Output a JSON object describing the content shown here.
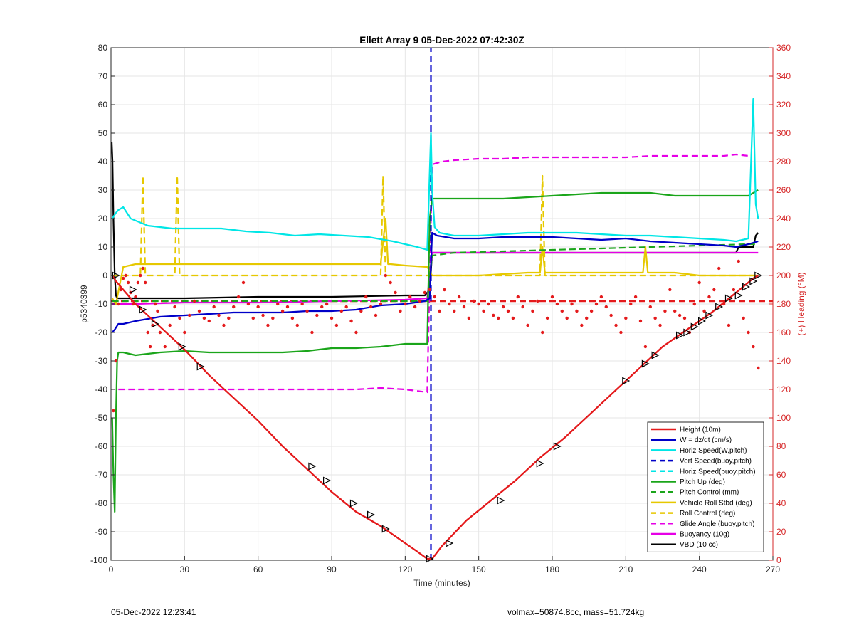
{
  "chart_data": {
    "type": "line",
    "title": "Ellett Array 9 05-Dec-2022 07:42:30Z",
    "xlabel": "Time (minutes)",
    "ylabel": "p5340399",
    "ylabel_right": "(+) Heading (°M)",
    "xlim": [
      0,
      270
    ],
    "ylim": [
      -100,
      80
    ],
    "ylim_right": [
      0,
      360
    ],
    "xticks": [
      0,
      30,
      60,
      90,
      120,
      150,
      180,
      210,
      240,
      270
    ],
    "yticks": [
      -100,
      -90,
      -80,
      -70,
      -60,
      -50,
      -40,
      -30,
      -20,
      -10,
      0,
      10,
      20,
      30,
      40,
      50,
      60,
      70,
      80
    ],
    "yticks_right": [
      0,
      20,
      40,
      60,
      80,
      100,
      120,
      140,
      160,
      180,
      200,
      220,
      240,
      260,
      280,
      300,
      320,
      340,
      360
    ],
    "grid": true,
    "legend_position": "bottom-right",
    "series": [
      {
        "name": "Height (10m)",
        "color": "#e41a1c",
        "style": "solid",
        "x": [
          0.5,
          2,
          10,
          20,
          30,
          40,
          50,
          60,
          70,
          80,
          90,
          100,
          110,
          120,
          125,
          129,
          131,
          135,
          145,
          155,
          165,
          175,
          185,
          195,
          205,
          215,
          225,
          235,
          245,
          255,
          262,
          264
        ],
        "y": [
          0,
          -2,
          -10,
          -18,
          -26,
          -35,
          -43,
          -51,
          -60,
          -68,
          -76,
          -83,
          -88,
          -94,
          -97,
          -99.5,
          -99.5,
          -95,
          -86,
          -79,
          -72,
          -64,
          -57,
          -49,
          -41,
          -33,
          -25,
          -19,
          -13,
          -6,
          -1,
          0
        ]
      },
      {
        "name": "W = dz/dt (cm/s)",
        "color": "#0000c8",
        "style": "solid",
        "x": [
          0.5,
          1.5,
          3,
          5,
          10,
          20,
          30,
          40,
          50,
          60,
          70,
          80,
          90,
          100,
          110,
          120,
          128,
          130,
          131,
          133,
          140,
          150,
          160,
          170,
          180,
          190,
          200,
          210,
          220,
          230,
          240,
          250,
          255,
          260,
          264
        ],
        "y": [
          -20,
          -19,
          -17,
          -17,
          -16,
          -14.5,
          -14,
          -13.5,
          -13,
          -13,
          -13,
          -12.5,
          -12.5,
          -12,
          -10.5,
          -10,
          -9,
          -8,
          15,
          14,
          13,
          13,
          13.5,
          13.5,
          13.5,
          13,
          12.5,
          13,
          12,
          11.5,
          11,
          10.5,
          10,
          11,
          12
        ]
      },
      {
        "name": "Horiz Speed(W,pitch)",
        "color": "#00e6e6",
        "style": "solid",
        "x": [
          0.5,
          2,
          3,
          5,
          8,
          15,
          25,
          35,
          45,
          55,
          65,
          75,
          85,
          95,
          105,
          115,
          125,
          129,
          130.5,
          131,
          132,
          134,
          140,
          150,
          160,
          170,
          180,
          190,
          200,
          210,
          220,
          230,
          240,
          250,
          255,
          260,
          262,
          263,
          264
        ],
        "y": [
          20,
          22,
          23,
          24,
          20,
          17.5,
          16.5,
          16.5,
          16.5,
          15.5,
          15,
          14,
          14.5,
          14,
          13.5,
          12,
          10,
          9,
          50,
          30,
          17,
          15,
          14,
          14,
          14.5,
          15,
          15,
          15,
          14.5,
          14,
          14,
          13.5,
          13,
          12.5,
          12,
          13,
          62,
          25,
          20
        ]
      },
      {
        "name": "Vert Speed(buoy,pitch)",
        "color": "#0000c8",
        "style": "dashed",
        "x": [
          130.5,
          130.5
        ],
        "y": [
          -100,
          80
        ]
      },
      {
        "name": "Horiz Speed(buoy,pitch)",
        "color": "#00e6e6",
        "style": "dashed",
        "x": [],
        "y": []
      },
      {
        "name": "Pitch Up (deg)",
        "color": "#1aa51a",
        "style": "solid",
        "x": [
          0.5,
          1,
          1.5,
          2,
          2.5,
          3,
          5,
          10,
          20,
          30,
          40,
          50,
          60,
          70,
          80,
          90,
          100,
          110,
          120,
          129,
          130,
          131,
          133,
          140,
          150,
          160,
          170,
          180,
          190,
          200,
          210,
          220,
          230,
          240,
          250,
          260,
          264
        ],
        "y": [
          -50,
          -70,
          -83,
          -50,
          -30,
          -27,
          -27,
          -28,
          -27,
          -26.5,
          -27,
          -27,
          -27,
          -27,
          -26.5,
          -25.5,
          -25.5,
          -25,
          -24,
          -24,
          20,
          27,
          27,
          27,
          27,
          27,
          27.5,
          28,
          28.5,
          29,
          29,
          29,
          28,
          28,
          28,
          28,
          30
        ]
      },
      {
        "name": "Pitch Control (mm)",
        "color": "#1aa51a",
        "style": "dashed",
        "x": [
          0.5,
          2,
          5,
          30,
          60,
          90,
          120,
          129,
          131,
          140,
          160,
          180,
          200,
          220,
          240,
          260,
          264
        ],
        "y": [
          -9,
          -9,
          -9,
          -9,
          -9,
          -9,
          -9,
          -9,
          7,
          8,
          8.5,
          9,
          9.5,
          10,
          10.5,
          11,
          11
        ]
      },
      {
        "name": "Vehicle Roll Stbd (deg)",
        "color": "#e6c800",
        "style": "solid",
        "x": [
          0.5,
          2,
          5,
          10,
          20,
          30,
          40,
          50,
          60,
          70,
          80,
          90,
          100,
          110,
          112,
          113,
          114,
          120,
          129,
          131,
          135,
          150,
          170,
          175,
          176,
          177,
          180,
          200,
          217,
          218,
          219,
          230,
          240,
          250,
          260,
          264
        ],
        "y": [
          -8,
          -10,
          3,
          4,
          4,
          4,
          4,
          4,
          4,
          4,
          4,
          4,
          4,
          4,
          20,
          4,
          4,
          3.5,
          3,
          0,
          0,
          0,
          1,
          1,
          10,
          1,
          1,
          1,
          1,
          10,
          1,
          1,
          0,
          0,
          0,
          0
        ]
      },
      {
        "name": "Roll Control (deg)",
        "color": "#e6c800",
        "style": "dashed",
        "x": [
          0.5,
          5,
          12,
          13,
          14,
          20,
          26,
          27,
          28,
          35,
          60,
          90,
          110,
          111,
          112,
          129,
          131,
          150,
          160,
          170,
          175,
          176,
          177,
          200,
          220,
          240,
          260,
          264
        ],
        "y": [
          0,
          0,
          0,
          35,
          0,
          0,
          0,
          35,
          0,
          0,
          0,
          0,
          0,
          35,
          0,
          0,
          0,
          0,
          0,
          0,
          0,
          35,
          0,
          0,
          0,
          0,
          0,
          0
        ]
      },
      {
        "name": "Glide Angle (buoy,pitch)",
        "color": "#e600e6",
        "style": "dashed",
        "x": [
          3,
          10,
          20,
          30,
          40,
          50,
          60,
          70,
          80,
          90,
          100,
          110,
          120,
          129,
          131,
          135,
          140,
          150,
          160,
          170,
          180,
          190,
          200,
          210,
          220,
          230,
          240,
          250,
          255,
          260
        ],
        "y": [
          -40,
          -40,
          -40,
          -40,
          -40,
          -40,
          -40,
          -40,
          -40,
          -40,
          -40,
          -39.5,
          -40,
          -41,
          39,
          40,
          40.5,
          41,
          41,
          41.5,
          41.5,
          41.5,
          41.5,
          41.5,
          42,
          42,
          42,
          42,
          42.5,
          42
        ]
      },
      {
        "name": "Buoyancy (10g)",
        "color": "#e600e6",
        "style": "solid",
        "x": [
          0.5,
          2,
          10,
          30,
          60,
          90,
          120,
          129,
          131,
          140,
          160,
          180,
          200,
          220,
          240,
          255,
          260,
          264
        ],
        "y": [
          -10,
          -10,
          -10,
          -9.5,
          -9.5,
          -9,
          -8.5,
          -8,
          8,
          8,
          8,
          8,
          8,
          8,
          8,
          8,
          8,
          8
        ]
      },
      {
        "name": "VBD (10 cc)",
        "color": "#000000",
        "style": "solid",
        "x": [
          0.3,
          0.6,
          1,
          1.5,
          2,
          2.5,
          10,
          30,
          60,
          90,
          120,
          128,
          130,
          131,
          132,
          140,
          160,
          180,
          200,
          220,
          240,
          255,
          256,
          260,
          262,
          263,
          264
        ],
        "y": [
          47,
          40,
          20,
          0,
          -7,
          -8,
          -8,
          -8,
          -7.5,
          -7.5,
          -7,
          -7,
          -5,
          8,
          8,
          8,
          8,
          8,
          8,
          8,
          8,
          8,
          10,
          10,
          10,
          14,
          15
        ]
      }
    ],
    "heading_series": {
      "name": "(+) Heading (°M)",
      "color": "#e41a1c",
      "axis": "right",
      "x": [
        1,
        2,
        3,
        4,
        5,
        6,
        7,
        8,
        9,
        10,
        11,
        12,
        13,
        14,
        15,
        16,
        17,
        18,
        19,
        20,
        22,
        24,
        26,
        28,
        30,
        32,
        34,
        36,
        38,
        40,
        42,
        44,
        46,
        48,
        50,
        52,
        54,
        56,
        58,
        60,
        62,
        64,
        66,
        68,
        70,
        72,
        74,
        76,
        78,
        80,
        82,
        84,
        86,
        88,
        90,
        92,
        94,
        96,
        98,
        100,
        102,
        104,
        106,
        108,
        110,
        112,
        114,
        116,
        118,
        120,
        122,
        124,
        126,
        128,
        130,
        132,
        134,
        136,
        138,
        140,
        142,
        144,
        146,
        148,
        150,
        152,
        154,
        156,
        158,
        160,
        162,
        164,
        166,
        168,
        170,
        172,
        174,
        176,
        178,
        180,
        182,
        184,
        186,
        188,
        190,
        192,
        194,
        196,
        198,
        200,
        202,
        204,
        206,
        208,
        210,
        212,
        214,
        216,
        218,
        220,
        222,
        224,
        226,
        228,
        230,
        232,
        234,
        236,
        238,
        240,
        242,
        244,
        246,
        248,
        250,
        252,
        254,
        256,
        258,
        260,
        262,
        264
      ],
      "y": [
        105,
        140,
        180,
        190,
        198,
        200,
        195,
        188,
        180,
        185,
        195,
        200,
        205,
        195,
        160,
        150,
        165,
        180,
        175,
        160,
        150,
        165,
        178,
        170,
        160,
        172,
        182,
        175,
        170,
        168,
        178,
        172,
        165,
        170,
        178,
        185,
        195,
        180,
        170,
        178,
        172,
        165,
        170,
        180,
        175,
        178,
        170,
        165,
        180,
        175,
        160,
        172,
        178,
        180,
        170,
        165,
        175,
        178,
        168,
        160,
        175,
        185,
        178,
        172,
        180,
        200,
        195,
        188,
        175,
        180,
        185,
        178,
        182,
        188,
        190,
        185,
        175,
        190,
        180,
        175,
        185,
        178,
        170,
        182,
        180,
        175,
        180,
        172,
        170,
        178,
        175,
        170,
        185,
        178,
        165,
        175,
        182,
        160,
        170,
        185,
        180,
        175,
        170,
        180,
        175,
        165,
        170,
        175,
        180,
        185,
        178,
        172,
        165,
        160,
        170,
        180,
        185,
        168,
        150,
        178,
        170,
        165,
        175,
        190,
        175,
        172,
        170,
        160,
        180,
        195,
        175,
        185,
        190,
        205,
        180,
        165,
        190,
        210,
        170,
        160,
        150,
        135
      ]
    },
    "heading_ref": {
      "y": 182,
      "color": "#e41a1c",
      "style": "dashed"
    },
    "markers": {
      "x": [
        2,
        9,
        13,
        18,
        29,
        36.5,
        82,
        88,
        99,
        106,
        112,
        130,
        138,
        159,
        175,
        182,
        210,
        218,
        222,
        232,
        235,
        238,
        241,
        244,
        248,
        252,
        256,
        259,
        262,
        264
      ],
      "y": [
        0,
        -5,
        -12,
        -17,
        -25,
        -32,
        -67,
        -72,
        -80,
        -84,
        -89,
        -99.5,
        -94,
        -79,
        -66,
        -60,
        -37,
        -31,
        -28,
        -21,
        -20,
        -18,
        -16,
        -14,
        -11,
        -8,
        -7,
        -4,
        -2,
        0
      ]
    }
  },
  "footer": {
    "timestamp": "05-Dec-2022 12:23:41",
    "info": "volmax=50874.8cc, mass=51.724kg"
  }
}
